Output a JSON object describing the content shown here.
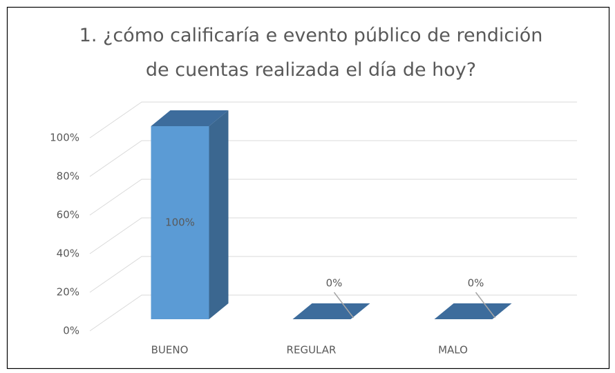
{
  "chart_data": {
    "type": "bar3d",
    "title": "1. ¿cómo calificaría e evento público de rendición de cuentas realizada el día de hoy?",
    "categories": [
      "BUENO",
      "REGULAR",
      "MALO"
    ],
    "values": [
      100,
      0,
      0
    ],
    "value_labels": [
      "100%",
      "0%",
      "0%"
    ],
    "color": "#5b9bd5",
    "ylim": [
      0,
      100
    ],
    "yticks": [
      {
        "value": 0,
        "label": "0%"
      },
      {
        "value": 20,
        "label": "20%"
      },
      {
        "value": 40,
        "label": "40%"
      },
      {
        "value": 60,
        "label": "60%"
      },
      {
        "value": 80,
        "label": "80%"
      },
      {
        "value": 100,
        "label": "100%"
      }
    ],
    "grid": true
  }
}
